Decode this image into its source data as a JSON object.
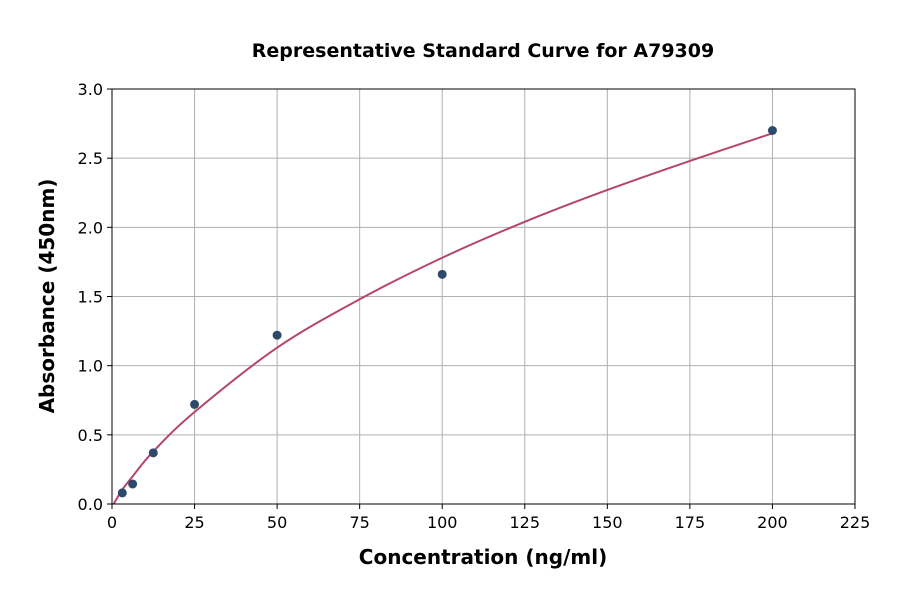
{
  "chart_data": {
    "type": "scatter",
    "title": "Representative Standard Curve for A79309",
    "xlabel": "Concentration (ng/ml)",
    "ylabel": "Absorbance (450nm)",
    "xlim": [
      0,
      225
    ],
    "ylim": [
      0,
      3.0
    ],
    "xticks": [
      0,
      25,
      50,
      75,
      100,
      125,
      150,
      175,
      200,
      225
    ],
    "yticks": [
      0.0,
      0.5,
      1.0,
      1.5,
      2.0,
      2.5,
      3.0
    ],
    "ytick_labels": [
      "0.0",
      "0.5",
      "1.0",
      "1.5",
      "2.0",
      "2.5",
      "3.0"
    ],
    "grid": true,
    "points": {
      "x": [
        3.125,
        6.25,
        12.5,
        25,
        50,
        100,
        200
      ],
      "y": [
        0.08,
        0.145,
        0.37,
        0.72,
        1.22,
        1.66,
        2.7
      ],
      "color": "#2e4a6b"
    },
    "fit_curve": {
      "x": [
        0.5,
        3,
        6.25,
        12.5,
        25,
        50,
        75,
        100,
        125,
        150,
        175,
        200
      ],
      "y": [
        0.0,
        0.1,
        0.2,
        0.38,
        0.665,
        1.13,
        1.48,
        1.78,
        2.04,
        2.27,
        2.48,
        2.68
      ],
      "color": "#b5466b"
    }
  }
}
